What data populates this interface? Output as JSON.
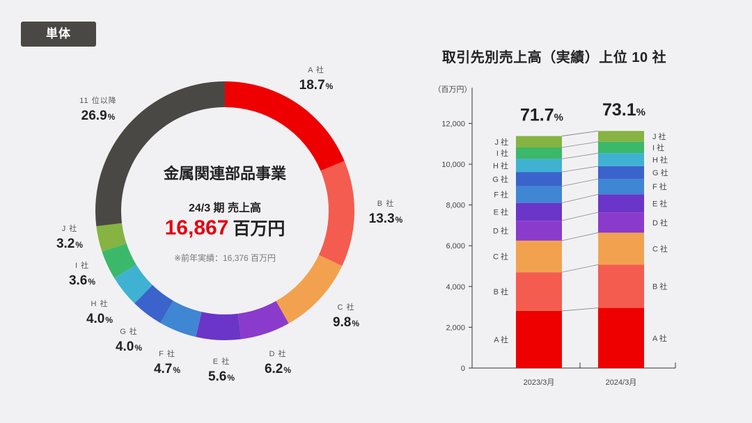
{
  "badge": "単体",
  "donut": {
    "center_title": "金属関連部品事業",
    "period_label": "24/3 期  売上高",
    "sales_value": "16,867",
    "sales_unit": "百万円",
    "previous_note": "※前年実績：16,376 百万円"
  },
  "colors": {
    "A社": "#ee0000",
    "B社": "#f45c4f",
    "C社": "#f2a24f",
    "D社": "#8b3bcb",
    "E社": "#6a35c8",
    "F社": "#3f86d3",
    "G社": "#3b63cc",
    "H社": "#3fb2d3",
    "I社": "#3bb86a",
    "J社": "#86b342",
    "11位以降": "#4a4845"
  },
  "chart_data": [
    {
      "type": "pie",
      "donut": true,
      "title": "",
      "slices": [
        {
          "label": "A 社",
          "key": "A社",
          "value": 18.7,
          "display": "18.7"
        },
        {
          "label": "B 社",
          "key": "B社",
          "value": 13.3,
          "display": "13.3"
        },
        {
          "label": "C 社",
          "key": "C社",
          "value": 9.8,
          "display": "9.8"
        },
        {
          "label": "D 社",
          "key": "D社",
          "value": 6.2,
          "display": "6.2"
        },
        {
          "label": "E 社",
          "key": "E社",
          "value": 5.6,
          "display": "5.6"
        },
        {
          "label": "F 社",
          "key": "F社",
          "value": 4.7,
          "display": "4.7"
        },
        {
          "label": "G 社",
          "key": "G社",
          "value": 4.0,
          "display": "4.0"
        },
        {
          "label": "H 社",
          "key": "H社",
          "value": 4.0,
          "display": "4.0"
        },
        {
          "label": "I 社",
          "key": "I社",
          "value": 3.6,
          "display": "3.6"
        },
        {
          "label": "J 社",
          "key": "J社",
          "value": 3.2,
          "display": "3.2"
        },
        {
          "label": "11 位以降",
          "key": "11位以降",
          "value": 26.9,
          "display": "26.9"
        }
      ],
      "pct_unit": "%"
    },
    {
      "type": "bar",
      "stacked": true,
      "title": "取引先別売上高（実績）上位 10 社",
      "ylabel": "（百万円）",
      "ylim": [
        0,
        12000
      ],
      "yticks": [
        0,
        2000,
        4000,
        6000,
        8000,
        10000,
        12000
      ],
      "ytick_labels": [
        "0",
        "2,000",
        "4,000",
        "6,000",
        "8,000",
        "10,000",
        "12,000"
      ],
      "categories": [
        "2023/3月",
        "2024/3月"
      ],
      "totals_label": [
        "71.7",
        "73.1"
      ],
      "totals_unit": "%",
      "series": [
        {
          "name": "A 社",
          "key": "A社",
          "values": [
            2800,
            2950
          ]
        },
        {
          "name": "B 社",
          "key": "B社",
          "values": [
            1900,
            2120
          ]
        },
        {
          "name": "C 社",
          "key": "C社",
          "values": [
            1550,
            1570
          ]
        },
        {
          "name": "D 社",
          "key": "D社",
          "values": [
            980,
            1000
          ]
        },
        {
          "name": "E 社",
          "key": "E社",
          "values": [
            870,
            880
          ]
        },
        {
          "name": "F 社",
          "key": "F社",
          "values": [
            820,
            760
          ]
        },
        {
          "name": "G 社",
          "key": "G社",
          "values": [
            700,
            620
          ]
        },
        {
          "name": "H 社",
          "key": "H社",
          "values": [
            640,
            640
          ]
        },
        {
          "name": "I 社",
          "key": "I社",
          "values": [
            560,
            560
          ]
        },
        {
          "name": "J 社",
          "key": "J社",
          "values": [
            560,
            530
          ]
        }
      ]
    }
  ]
}
